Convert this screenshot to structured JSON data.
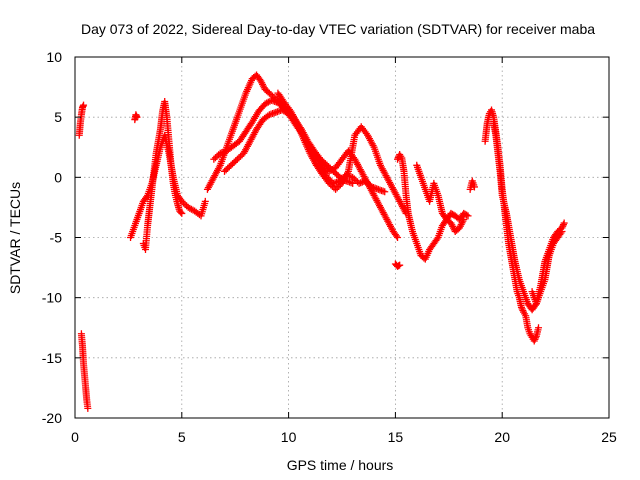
{
  "chart_data": {
    "type": "scatter",
    "title": "Day 073 of 2022, Sidereal Day-to-day VTEC variation (SDTVAR) for receiver maba",
    "xlabel": "GPS time / hours",
    "ylabel": "SDTVAR / TECUs",
    "xlim": [
      0,
      25
    ],
    "ylim": [
      -20,
      10
    ],
    "xticks": [
      0,
      5,
      10,
      15,
      20,
      25
    ],
    "yticks": [
      -20,
      -15,
      -10,
      -5,
      0,
      5,
      10
    ],
    "grid": true,
    "marker": "+",
    "color": "#ff0000",
    "series": [
      {
        "name": "SDTVAR",
        "segments": [
          {
            "x": [
              0.2,
              0.25,
              0.3,
              0.35,
              0.4
            ],
            "y": [
              3.5,
              4.5,
              5.2,
              5.8,
              6.0
            ]
          },
          {
            "x": [
              0.3,
              0.35,
              0.4,
              0.45,
              0.5,
              0.55,
              0.6
            ],
            "y": [
              -13.0,
              -14.0,
              -15.5,
              -16.5,
              -17.5,
              -18.5,
              -19.2
            ]
          },
          {
            "x": [
              2.6,
              2.8,
              3.0,
              3.2,
              3.4,
              3.6,
              3.8,
              4.0,
              4.2,
              4.4,
              4.6,
              4.8,
              5.0,
              5.3,
              5.6,
              5.9,
              6.1
            ],
            "y": [
              -5.0,
              -4.0,
              -3.0,
              -2.0,
              -1.5,
              -0.5,
              1.0,
              2.5,
              3.5,
              2.0,
              0.0,
              -1.5,
              -2.0,
              -2.5,
              -2.8,
              -3.2,
              -2.0
            ]
          },
          {
            "x": [
              2.8,
              2.85,
              2.9
            ],
            "y": [
              4.8,
              5.2,
              5.0
            ]
          },
          {
            "x": [
              3.2,
              3.3,
              3.4,
              3.5,
              3.6,
              3.8,
              4.0,
              4.1,
              4.2,
              4.3,
              4.4,
              4.5,
              4.6,
              4.7,
              4.8,
              4.9,
              5.0
            ],
            "y": [
              -5.5,
              -6.0,
              -4.0,
              -2.5,
              -1.0,
              2.0,
              4.0,
              5.5,
              6.3,
              5.0,
              3.0,
              1.0,
              -0.5,
              -1.5,
              -2.2,
              -2.8,
              -3.0
            ]
          },
          {
            "x": [
              6.2,
              6.5,
              6.8,
              7.1,
              7.4,
              7.7,
              8.0,
              8.3,
              8.5,
              8.7,
              8.9,
              9.1,
              9.4,
              9.7,
              10.0,
              10.3,
              10.6,
              10.9,
              11.2,
              11.5,
              11.8,
              12.1,
              12.4,
              12.7,
              13.0
            ],
            "y": [
              -1.0,
              0.0,
              1.0,
              2.5,
              4.0,
              5.5,
              7.0,
              8.2,
              8.5,
              8.0,
              7.3,
              7.0,
              6.5,
              6.0,
              5.5,
              4.8,
              4.0,
              3.0,
              2.2,
              1.5,
              1.0,
              0.5,
              0.0,
              -0.3,
              -0.5
            ]
          },
          {
            "x": [
              6.5,
              6.8,
              7.1,
              7.4,
              7.7,
              8.0,
              8.3,
              8.6,
              8.9,
              9.2,
              9.5,
              9.8,
              10.1,
              10.4,
              10.7,
              11.0,
              11.3,
              11.6,
              11.9,
              12.2,
              12.5,
              12.8,
              13.1,
              13.4,
              13.7,
              14.0,
              14.3,
              14.6,
              14.9,
              15.1
            ],
            "y": [
              1.5,
              2.0,
              2.2,
              2.6,
              3.0,
              3.8,
              4.6,
              5.5,
              6.1,
              6.4,
              6.2,
              5.7,
              5.0,
              4.2,
              3.4,
              2.5,
              1.8,
              1.0,
              0.5,
              0.8,
              1.5,
              2.2,
              1.5,
              0.5,
              -0.5,
              -1.5,
              -2.5,
              -3.5,
              -4.5,
              -5.0
            ]
          },
          {
            "x": [
              7.0,
              7.3,
              7.6,
              7.9,
              8.2,
              8.5,
              8.8,
              9.1,
              9.4,
              9.7,
              10.0,
              10.3,
              10.6,
              10.9,
              11.2,
              11.5,
              11.8,
              12.1,
              12.4,
              12.7,
              13.0,
              13.3,
              13.6,
              13.9,
              14.2,
              14.5
            ],
            "y": [
              0.5,
              1.0,
              1.5,
              2.0,
              3.0,
              4.0,
              4.8,
              5.2,
              5.4,
              5.6,
              5.3,
              4.8,
              3.8,
              2.8,
              2.0,
              1.0,
              0.0,
              -0.5,
              -0.3,
              0.2,
              0.0,
              -0.5,
              -0.3,
              -0.8,
              -1.0,
              -1.2
            ]
          },
          {
            "x": [
              9.5,
              9.8,
              10.1,
              10.4,
              10.7,
              11.0,
              11.3,
              11.6,
              11.9,
              12.2,
              12.5,
              12.8,
              13.1,
              13.4,
              13.7,
              14.0,
              14.3,
              14.6,
              14.9,
              15.2,
              15.5
            ],
            "y": [
              7.0,
              6.2,
              5.5,
              4.5,
              3.2,
              2.0,
              1.0,
              0.2,
              -0.5,
              -1.0,
              -0.5,
              0.5,
              3.5,
              4.2,
              3.5,
              2.5,
              1.0,
              0.0,
              -1.0,
              -2.0,
              -3.0
            ]
          },
          {
            "x": [
              15.0,
              15.1,
              15.2
            ],
            "y": [
              -7.2,
              -7.4,
              -7.3
            ]
          },
          {
            "x": [
              15.1,
              15.2,
              15.3,
              15.4,
              15.5,
              15.6,
              15.8,
              16.0,
              16.2,
              16.4,
              16.6,
              16.8,
              17.0,
              17.2,
              17.4,
              17.6,
              17.8,
              18.0,
              18.2
            ],
            "y": [
              1.5,
              1.9,
              1.6,
              0.5,
              -1.5,
              -3.0,
              -4.5,
              -5.5,
              -6.5,
              -6.8,
              -6.0,
              -5.5,
              -5.0,
              -4.0,
              -3.5,
              -3.8,
              -4.5,
              -4.2,
              -3.5
            ]
          },
          {
            "x": [
              16.0,
              16.2,
              16.4,
              16.6,
              16.8,
              17.0,
              17.2,
              17.4,
              17.6,
              17.8,
              18.0,
              18.2,
              18.4
            ],
            "y": [
              1.0,
              0.0,
              -1.0,
              -2.0,
              -0.5,
              -1.5,
              -3.0,
              -3.5,
              -3.0,
              -3.2,
              -3.5,
              -3.0,
              -3.2
            ]
          },
          {
            "x": [
              18.5,
              18.6,
              18.7
            ],
            "y": [
              -1.0,
              -0.3,
              -0.8
            ]
          },
          {
            "x": [
              19.2,
              19.3,
              19.4,
              19.5,
              19.6,
              19.7,
              19.8,
              19.9,
              20.0,
              20.1,
              20.2,
              20.3,
              20.4,
              20.5,
              20.6,
              20.7,
              20.8,
              20.9,
              21.0,
              21.1,
              21.2,
              21.3,
              21.4,
              21.5,
              21.6,
              21.7
            ],
            "y": [
              3.0,
              4.5,
              5.3,
              5.6,
              5.0,
              3.8,
              2.5,
              1.0,
              -1.0,
              -2.5,
              -4.0,
              -5.5,
              -6.5,
              -7.5,
              -8.5,
              -9.5,
              -10.0,
              -10.8,
              -11.2,
              -11.5,
              -12.5,
              -13.0,
              -13.3,
              -13.6,
              -13.2,
              -12.5
            ]
          },
          {
            "x": [
              19.6,
              19.7,
              19.8,
              19.9,
              20.0,
              20.2,
              20.4,
              20.6,
              20.8,
              21.0,
              21.2,
              21.4,
              21.6,
              21.8,
              22.0,
              22.2,
              22.4,
              22.6,
              22.8,
              22.9
            ],
            "y": [
              4.5,
              3.5,
              2.0,
              0.5,
              -1.5,
              -3.0,
              -5.0,
              -7.0,
              -8.5,
              -9.5,
              -10.5,
              -11.0,
              -10.5,
              -9.0,
              -7.0,
              -6.0,
              -5.0,
              -4.5,
              -4.2,
              -3.8
            ]
          },
          {
            "x": [
              21.4,
              21.6,
              21.8,
              22.0,
              22.2,
              22.4,
              22.6,
              22.8
            ],
            "y": [
              -9.5,
              -10.5,
              -9.5,
              -8.5,
              -6.5,
              -5.5,
              -5.0,
              -4.5
            ]
          }
        ]
      }
    ]
  }
}
